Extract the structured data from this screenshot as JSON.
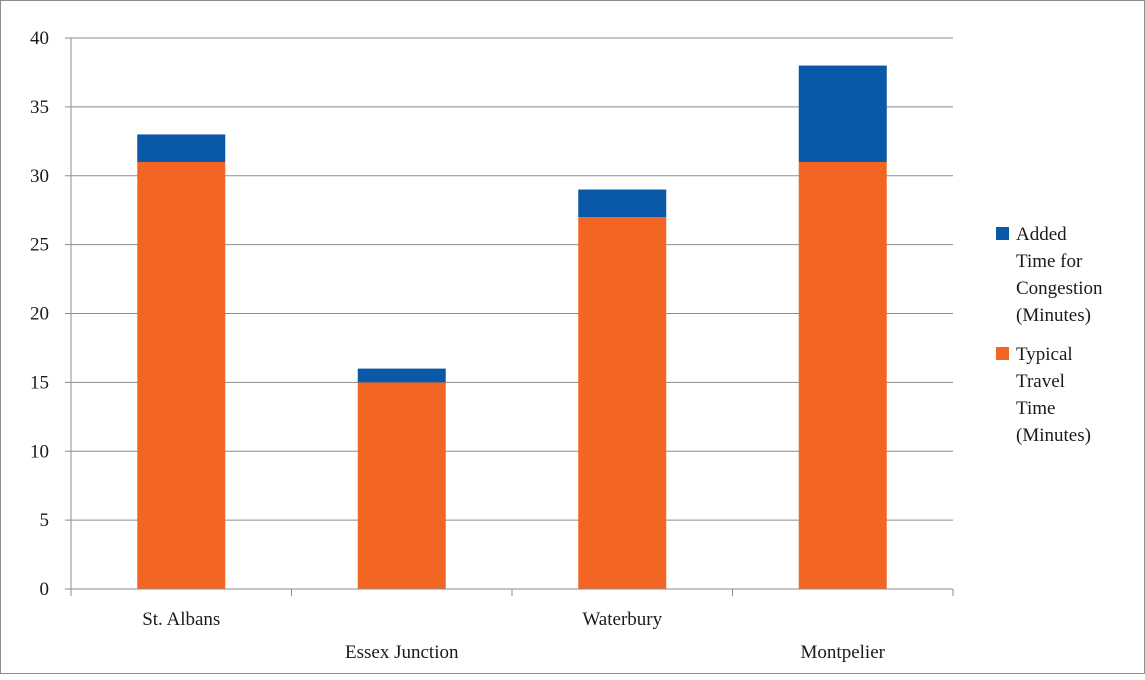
{
  "chart_data": {
    "type": "bar",
    "stacked": true,
    "title": "",
    "xlabel": "",
    "ylabel": "",
    "categories": [
      "St. Albans",
      "Essex Junction",
      "Waterbury",
      "Montpelier"
    ],
    "series": [
      {
        "name": "Typical Travel Time (Minutes)",
        "name_lines": [
          "Typical",
          "Travel",
          "Time",
          "(Minutes)"
        ],
        "color": "#f26522",
        "values": [
          31,
          15,
          27,
          31
        ]
      },
      {
        "name": "Added Time for Congestion (Minutes)",
        "name_lines": [
          "Added",
          "Time for",
          "Congestion",
          "(Minutes)"
        ],
        "color": "#0a58a8",
        "values": [
          2,
          1,
          2,
          7
        ]
      }
    ],
    "ylim": [
      0,
      40
    ],
    "yticks": [
      0,
      5,
      10,
      15,
      20,
      25,
      30,
      35,
      40
    ],
    "grid": true,
    "legend_position": "right",
    "legend_order": [
      1,
      0
    ]
  }
}
